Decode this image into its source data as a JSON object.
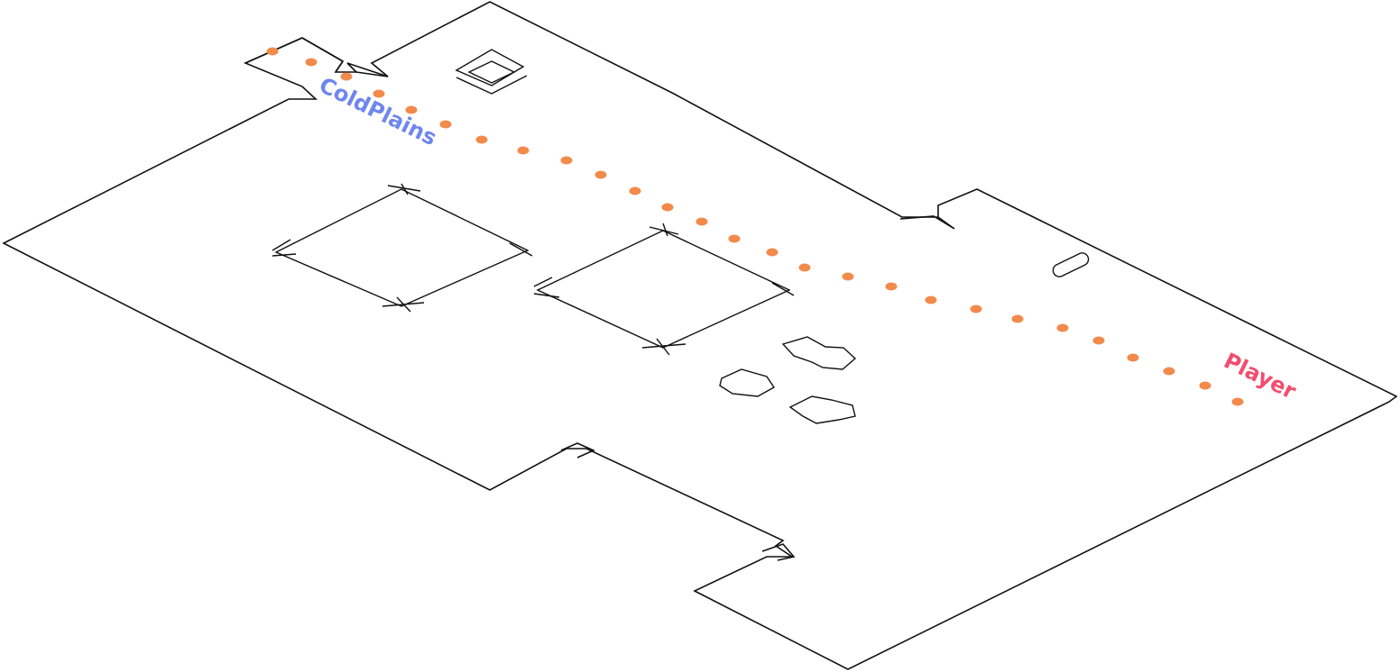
{
  "map": {
    "start_label": "ColdPlains",
    "player_label": "Player",
    "colors": {
      "outline": "#111111",
      "path": "#f28a4b",
      "start_label": "#6e86f0",
      "player_label": "#f24d6e",
      "background": "#ffffff"
    },
    "path_markers": "dotted-route",
    "projection": "isometric"
  }
}
